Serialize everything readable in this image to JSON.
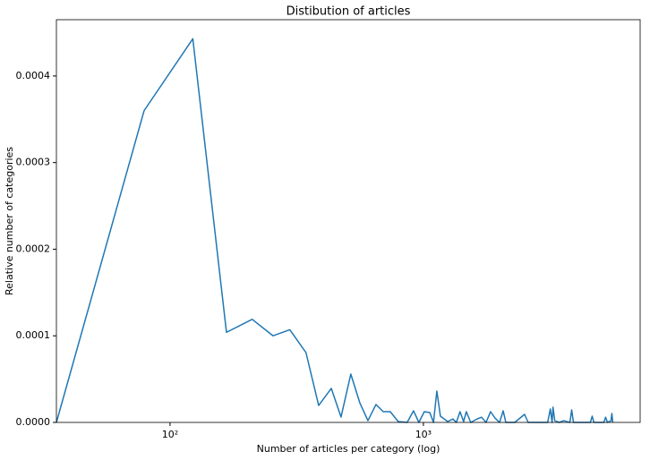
{
  "chart_data": {
    "type": "line",
    "title": "Distibution of articles",
    "x_label": "Number of articles per category (log)",
    "y_label": "Relative number of categories",
    "xscale": "log",
    "color": "#1f77b4",
    "xlim": [
      35.6,
      7170
    ],
    "ylim": [
      0,
      0.000465
    ],
    "xticks": [
      {
        "value": 100,
        "label": "10²"
      },
      {
        "value": 1000,
        "label": "10³"
      }
    ],
    "yticks": [
      {
        "value": 0,
        "label": "0.0000"
      },
      {
        "value": 0.0001,
        "label": "0.0001"
      },
      {
        "value": 0.0002,
        "label": "0.0002"
      },
      {
        "value": 0.0003,
        "label": "0.0003"
      },
      {
        "value": 0.0004,
        "label": "0.0004"
      }
    ],
    "x": [
      35.6,
      79,
      123,
      167,
      211,
      255,
      297,
      344,
      386,
      433,
      473,
      517,
      561,
      604,
      650,
      694,
      740,
      795,
      863,
      914,
      960,
      1008,
      1060,
      1096,
      1130,
      1167,
      1246,
      1308,
      1349,
      1395,
      1441,
      1477,
      1538,
      1629,
      1697,
      1767,
      1841,
      1918,
      1998,
      2065,
      2115,
      2293,
      2508,
      2591,
      2809,
      3094,
      3169,
      3221,
      3247,
      3300,
      3436,
      3577,
      3787,
      3848,
      3911,
      4205,
      4561,
      4636,
      4711,
      5156,
      5240,
      5325,
      5500,
      5545,
      5590
    ],
    "values": [
      0,
      0.00036,
      0.000443,
      0.000104,
      0.000119,
      0.0001,
      0.000107,
      8.06e-05,
      1.96e-05,
      3.93e-05,
      6.2e-06,
      5.58e-05,
      2.27e-05,
      2e-06,
      2.07e-05,
      1.24e-05,
      1.24e-05,
      1e-06,
      0,
      1.34e-05,
      0,
      1.24e-05,
      1.14e-05,
      0,
      3.62e-05,
      7.2e-06,
      1e-06,
      4e-06,
      0,
      1.24e-05,
      1e-06,
      1.24e-05,
      0,
      4e-06,
      6e-06,
      0,
      1.24e-05,
      5e-06,
      0,
      1.34e-05,
      0,
      0,
      9.3e-06,
      0,
      0,
      0,
      1.55e-05,
      0,
      1.76e-05,
      2e-06,
      0,
      2e-06,
      0,
      1.45e-05,
      0,
      0,
      0,
      7.2e-06,
      0,
      0,
      6e-06,
      0,
      2e-06,
      1.03e-05,
      0
    ]
  }
}
